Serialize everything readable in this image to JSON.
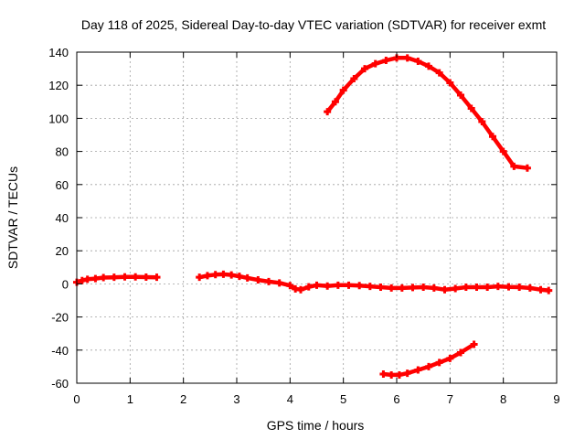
{
  "chart_data": {
    "type": "line",
    "title": "Day 118 of 2025, Sidereal Day-to-day VTEC variation (SDTVAR) for receiver exmt",
    "xlabel": "GPS time / hours",
    "ylabel": "SDTVAR / TECUs",
    "xlim": [
      0,
      9
    ],
    "ylim": [
      -60,
      140
    ],
    "xticks": [
      "0",
      "1",
      "2",
      "3",
      "4",
      "5",
      "6",
      "7",
      "8",
      "9"
    ],
    "yticks": [
      "-60",
      "-40",
      "-20",
      "0",
      "20",
      "40",
      "60",
      "80",
      "100",
      "120",
      "140"
    ],
    "grid": true,
    "color": "#ff0000",
    "series": [
      {
        "name": "segment-1",
        "x": [
          0.0,
          0.1,
          0.2,
          0.35,
          0.5,
          0.7,
          0.9,
          1.1,
          1.3,
          1.5
        ],
        "y": [
          1.0,
          2.0,
          2.8,
          3.2,
          3.8,
          4.0,
          4.2,
          4.2,
          4.1,
          4.0
        ]
      },
      {
        "name": "segment-2",
        "x": [
          2.3,
          2.45,
          2.6,
          2.75,
          2.9,
          3.05,
          3.2,
          3.4,
          3.6,
          3.8,
          4.0,
          4.1,
          4.2,
          4.35,
          4.5,
          4.7,
          4.9,
          5.1,
          5.3,
          5.5,
          5.7,
          5.9,
          6.1,
          6.3,
          6.5,
          6.7,
          6.9,
          7.1,
          7.3,
          7.5,
          7.7,
          7.9,
          8.1,
          8.3,
          8.5,
          8.7,
          8.85
        ],
        "y": [
          4.0,
          5.0,
          5.6,
          5.8,
          5.4,
          4.6,
          3.6,
          2.4,
          1.4,
          0.6,
          -1.0,
          -3.0,
          -3.5,
          -1.8,
          -0.8,
          -1.3,
          -0.8,
          -0.8,
          -1.0,
          -1.5,
          -2.0,
          -2.5,
          -2.5,
          -2.2,
          -2.0,
          -2.5,
          -3.5,
          -2.8,
          -2.0,
          -2.0,
          -2.0,
          -1.5,
          -1.8,
          -2.0,
          -2.5,
          -3.5,
          -4.0
        ]
      },
      {
        "name": "segment-3",
        "x": [
          4.7,
          4.85,
          5.0,
          5.2,
          5.4,
          5.6,
          5.8,
          6.0,
          6.2,
          6.4,
          6.6,
          6.8,
          7.0,
          7.2,
          7.4,
          7.6,
          7.8,
          8.0,
          8.2,
          8.45
        ],
        "y": [
          104,
          110,
          117,
          124,
          130,
          133,
          135,
          136.5,
          136.5,
          134.5,
          131.5,
          127.5,
          121.5,
          114,
          106,
          98,
          89,
          80,
          71,
          70
        ]
      },
      {
        "name": "segment-4",
        "x": [
          5.75,
          5.9,
          6.05,
          6.2,
          6.4,
          6.6,
          6.8,
          7.0,
          7.2,
          7.45
        ],
        "y": [
          -54.5,
          -55.0,
          -55.0,
          -54.0,
          -52.0,
          -50.0,
          -47.5,
          -45.0,
          -41.5,
          -36.5
        ]
      }
    ]
  }
}
